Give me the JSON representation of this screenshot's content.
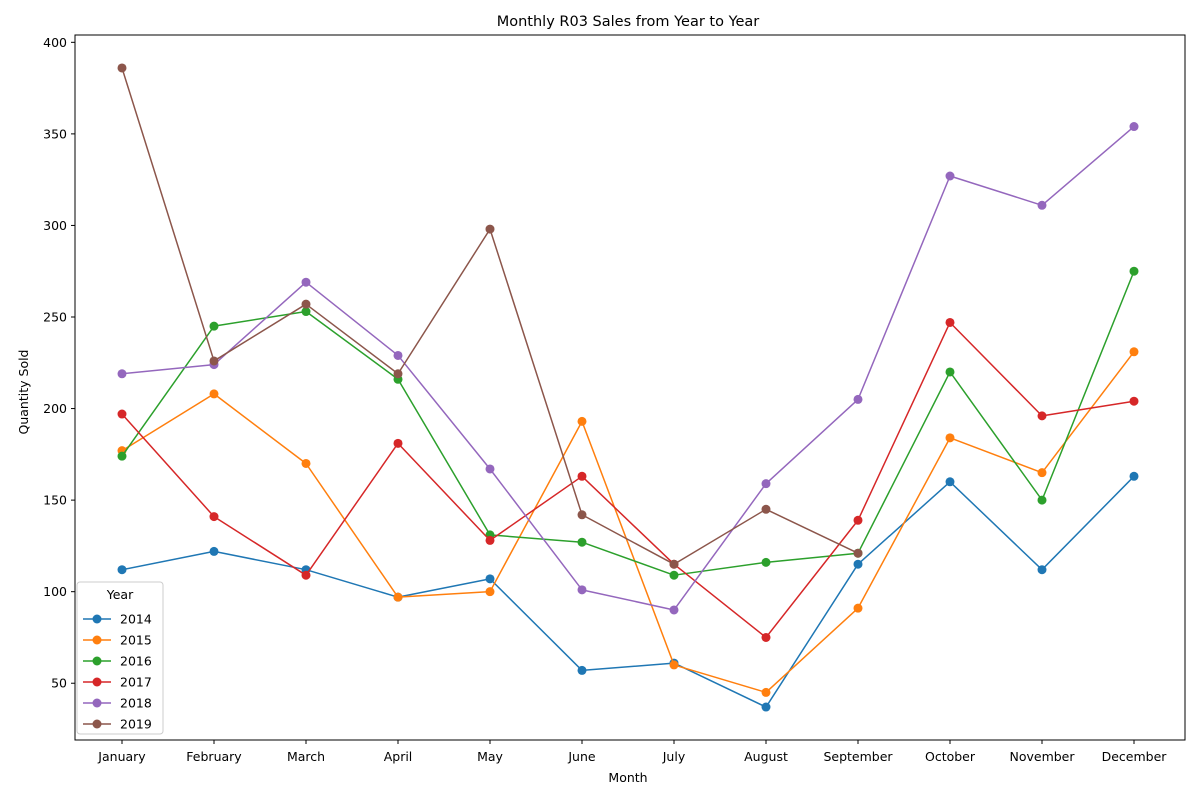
{
  "chart_data": {
    "type": "line",
    "title": "Monthly R03 Sales from Year to Year",
    "xlabel": "Month",
    "ylabel": "Quantity Sold",
    "categories": [
      "January",
      "February",
      "March",
      "April",
      "May",
      "June",
      "July",
      "August",
      "September",
      "October",
      "November",
      "December"
    ],
    "ylim": [
      19,
      404
    ],
    "yticks": [
      50,
      100,
      150,
      200,
      250,
      300,
      350,
      400
    ],
    "grid": false,
    "legend": {
      "title": "Year",
      "placement": "lower-left"
    },
    "series": [
      {
        "name": "2014",
        "color": "#1f77b4",
        "values": [
          112,
          122,
          112,
          97,
          107,
          57,
          61,
          37,
          115,
          160,
          112,
          163
        ]
      },
      {
        "name": "2015",
        "color": "#ff7f0e",
        "values": [
          177,
          208,
          170,
          97,
          100,
          193,
          60,
          45,
          91,
          184,
          165,
          231
        ]
      },
      {
        "name": "2016",
        "color": "#2ca02c",
        "values": [
          174,
          245,
          253,
          216,
          131,
          127,
          109,
          116,
          121,
          220,
          150,
          275
        ]
      },
      {
        "name": "2017",
        "color": "#d62728",
        "values": [
          197,
          141,
          109,
          181,
          128,
          163,
          115,
          75,
          139,
          247,
          196,
          204
        ]
      },
      {
        "name": "2018",
        "color": "#9467bd",
        "values": [
          219,
          224,
          269,
          229,
          167,
          101,
          90,
          159,
          205,
          327,
          311,
          354
        ]
      },
      {
        "name": "2019",
        "color": "#8c564b",
        "values": [
          386,
          226,
          257,
          219,
          298,
          142,
          115,
          145,
          121,
          null,
          null,
          null
        ]
      }
    ]
  }
}
